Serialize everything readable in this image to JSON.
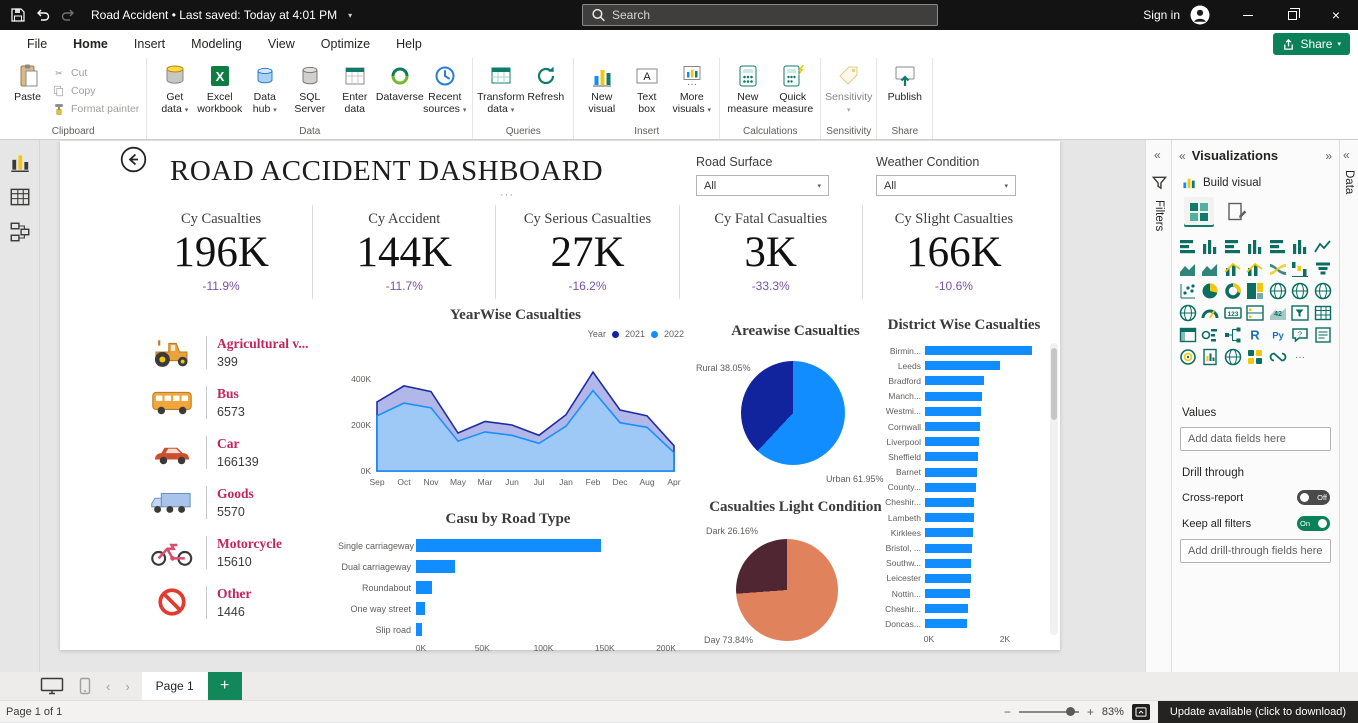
{
  "colors": {
    "titlebar_bg": "#131313",
    "accent_green": "#0b815a",
    "page_add_green": "#11875a",
    "ribbon_teal": "#0f7b6c",
    "bar_blue": "#118DFF",
    "pie_urban_blue": "#118DFF",
    "pie_rural_navy": "#12239E",
    "pie_day_salmon": "#e0835c",
    "pie_dark_maroon": "#4f2631",
    "area_2021_line": "#12239E",
    "area_2021_fill": "#aeb4e8",
    "area_2022_line": "#118DFF",
    "area_2022_fill": "#9dc9f7",
    "kpi_delta_purple": "#7851a9",
    "vehicle_label_crimson": "#c2245c"
  },
  "titlebar": {
    "icons": [
      "save-icon",
      "undo-icon",
      "redo-icon",
      "search-icon",
      "avatar-icon",
      "minimize-icon",
      "restore-icon",
      "close-icon"
    ],
    "document_title": "Road Accident • Last saved: Today at 4:01 PM",
    "search_placeholder": "Search",
    "sign_in_label": "Sign in"
  },
  "menubar": {
    "items": [
      "File",
      "Home",
      "Insert",
      "Modeling",
      "View",
      "Optimize",
      "Help"
    ],
    "active_item": "Home",
    "share_label": "Share"
  },
  "ribbon": {
    "groups": [
      {
        "label": "Clipboard",
        "buttons": [
          {
            "lines": [
              "Paste"
            ],
            "icon": "paste-icon",
            "big": true
          },
          {
            "lines": [
              "Cut"
            ],
            "icon": "cut-icon"
          },
          {
            "lines": [
              "Copy"
            ],
            "icon": "copy-icon"
          },
          {
            "lines": [
              "Format painter"
            ],
            "icon": "format-painter-icon"
          }
        ]
      },
      {
        "label": "Data",
        "buttons": [
          {
            "lines": [
              "Get",
              "data"
            ],
            "icon": "get-data-icon",
            "chevron": true
          },
          {
            "lines": [
              "Excel",
              "workbook"
            ],
            "icon": "excel-workbook-icon"
          },
          {
            "lines": [
              "Data",
              "hub"
            ],
            "icon": "data-hub-icon",
            "chevron": true
          },
          {
            "lines": [
              "SQL",
              "Server"
            ],
            "icon": "sql-server-icon"
          },
          {
            "lines": [
              "Enter",
              "data"
            ],
            "icon": "enter-data-icon"
          },
          {
            "lines": [
              "Dataverse"
            ],
            "icon": "dataverse-icon"
          },
          {
            "lines": [
              "Recent",
              "sources"
            ],
            "icon": "recent-sources-icon",
            "chevron": true
          }
        ]
      },
      {
        "label": "Queries",
        "buttons": [
          {
            "lines": [
              "Transform",
              "data"
            ],
            "icon": "transform-data-icon",
            "chevron": true
          },
          {
            "lines": [
              "Refresh"
            ],
            "icon": "refresh-icon"
          }
        ]
      },
      {
        "label": "Insert",
        "buttons": [
          {
            "lines": [
              "New",
              "visual"
            ],
            "icon": "new-visual-icon"
          },
          {
            "lines": [
              "Text",
              "box"
            ],
            "icon": "text-box-icon"
          },
          {
            "lines": [
              "More",
              "visuals"
            ],
            "icon": "more-visuals-icon",
            "chevron": true
          }
        ]
      },
      {
        "label": "Calculations",
        "buttons": [
          {
            "lines": [
              "New",
              "measure"
            ],
            "icon": "new-measure-icon"
          },
          {
            "lines": [
              "Quick",
              "measure"
            ],
            "icon": "quick-measure-icon"
          }
        ]
      },
      {
        "label": "Sensitivity",
        "buttons": [
          {
            "lines": [
              "Sensitivity"
            ],
            "icon": "sensitivity-icon",
            "chevron": true,
            "disabled": true
          }
        ]
      },
      {
        "label": "Share",
        "buttons": [
          {
            "lines": [
              "Publish"
            ],
            "icon": "publish-icon"
          }
        ]
      }
    ]
  },
  "left_rail": {
    "items": [
      {
        "icon": "report-view-icon"
      },
      {
        "icon": "table-view-icon"
      },
      {
        "icon": "model-view-icon"
      }
    ]
  },
  "dashboard": {
    "title": "ROAD ACCIDENT DASHBOARD",
    "slicers": [
      {
        "label": "Road Surface",
        "value": "All"
      },
      {
        "label": "Weather Condition",
        "value": "All"
      }
    ],
    "kpis": [
      {
        "label": "Cy Casualties",
        "value": "196K",
        "delta": "-11.9%"
      },
      {
        "label": "Cy Accident",
        "value": "144K",
        "delta": "-11.7%"
      },
      {
        "label": "Cy Serious Casualties",
        "value": "27K",
        "delta": "-16.2%"
      },
      {
        "label": "Cy Fatal Casualties",
        "value": "3K",
        "delta": "-33.3%"
      },
      {
        "label": "Cy Slight Casualties",
        "value": "166K",
        "delta": "-10.6%"
      }
    ],
    "vehicles": [
      {
        "icon": "tractor-icon",
        "label": "Agricultural v...",
        "value": "399"
      },
      {
        "icon": "bus-icon",
        "label": "Bus",
        "value": "6573"
      },
      {
        "icon": "car-icon",
        "label": "Car",
        "value": "166139"
      },
      {
        "icon": "truck-icon",
        "label": "Goods",
        "value": "5570"
      },
      {
        "icon": "motorcycle-icon",
        "label": "Motorcycle",
        "value": "15610"
      },
      {
        "icon": "no-entry-icon",
        "label": "Other",
        "value": "1446"
      }
    ]
  },
  "chart_data": [
    {
      "type": "area",
      "title": "YearWise Casualties",
      "legend_title": "Year",
      "legend_position": "top-right",
      "x": [
        "Sep",
        "Oct",
        "Nov",
        "May",
        "Mar",
        "Jun",
        "Jul",
        "Jan",
        "Feb",
        "Dec",
        "Aug",
        "Apr"
      ],
      "series": [
        {
          "name": "2021",
          "color": "#12239E",
          "values_k": [
            300,
            370,
            345,
            165,
            215,
            200,
            155,
            245,
            430,
            265,
            240,
            110
          ]
        },
        {
          "name": "2022",
          "color": "#118DFF",
          "values_k": [
            240,
            295,
            275,
            130,
            170,
            155,
            120,
            195,
            350,
            210,
            190,
            80
          ]
        }
      ],
      "yticks": [
        "0K",
        "200K",
        "400K"
      ],
      "ylim_k": [
        0,
        500
      ]
    },
    {
      "type": "pie",
      "title": "Areawise Casualties",
      "slices": [
        {
          "label": "Urban",
          "pct": 61.95,
          "color": "#118DFF"
        },
        {
          "label": "Rural",
          "pct": 38.05,
          "color": "#12239E"
        }
      ],
      "data_labels": [
        "Rural 38.05%",
        "Urban 61.95%"
      ]
    },
    {
      "type": "bar",
      "orientation": "horizontal",
      "title": "District Wise Casualties",
      "categories": [
        "Birmin...",
        "Leeds",
        "Bradford",
        "Manch...",
        "Westmi...",
        "Cornwall",
        "Liverpool",
        "Sheffield",
        "Barnet",
        "County...",
        "Cheshir...",
        "Lambeth",
        "Kirklees",
        "Bristol, ...",
        "Southw...",
        "Leicester",
        "Nottin...",
        "Cheshir...",
        "Doncas..."
      ],
      "values_k": [
        2.82,
        1.98,
        1.55,
        1.5,
        1.47,
        1.45,
        1.42,
        1.4,
        1.37,
        1.33,
        1.3,
        1.28,
        1.26,
        1.24,
        1.22,
        1.2,
        1.17,
        1.14,
        1.1
      ],
      "xticks": [
        "0K",
        "2K"
      ],
      "xlim_k": [
        0,
        2.9
      ],
      "bar_color": "#118DFF",
      "scrollbar": true
    },
    {
      "type": "bar",
      "orientation": "horizontal",
      "title": "Casu by Road Type",
      "categories": [
        "Single carriageway",
        "Dual carriageway",
        "Roundabout",
        "One way street",
        "Slip road"
      ],
      "values": [
        151000,
        32000,
        13000,
        7000,
        5000
      ],
      "xticks": [
        "0K",
        "50K",
        "100K",
        "150K",
        "200K"
      ],
      "xlim": [
        0,
        200000
      ],
      "bar_color": "#118DFF"
    },
    {
      "type": "pie",
      "title": "Casualties Light Condition",
      "slices": [
        {
          "label": "Day",
          "pct": 73.84,
          "color": "#e0835c"
        },
        {
          "label": "Dark",
          "pct": 26.16,
          "color": "#4f2631"
        }
      ],
      "data_labels": [
        "Dark 26.16%",
        "Day 73.84%"
      ]
    }
  ],
  "filters_pane": {
    "label": "Filters",
    "icon": "funnel-icon"
  },
  "viz_panel": {
    "title": "Visualizations",
    "build_visual_label": "Build visual",
    "values_label": "Values",
    "values_placeholder": "Add data fields here",
    "drill_through_label": "Drill through",
    "cross_report_label": "Cross-report",
    "cross_report_state": "Off",
    "keep_all_filters_label": "Keep all filters",
    "keep_all_filters_state": "On",
    "drill_placeholder": "Add drill-through fields here",
    "visual_icons": [
      {
        "name": "stacked-bar-chart-icon",
        "kind": "bars-h"
      },
      {
        "name": "stacked-column-chart-icon",
        "kind": "bars-v"
      },
      {
        "name": "clustered-bar-chart-icon",
        "kind": "bars-h"
      },
      {
        "name": "clustered-column-chart-icon",
        "kind": "bars-v"
      },
      {
        "name": "100-stacked-bar-chart-icon",
        "kind": "bars-h"
      },
      {
        "name": "100-stacked-column-chart-icon",
        "kind": "bars-v"
      },
      {
        "name": "line-chart-icon",
        "kind": "line"
      },
      {
        "name": "area-chart-icon",
        "kind": "area"
      },
      {
        "name": "stacked-area-chart-icon",
        "kind": "area"
      },
      {
        "name": "line-and-stacked-column-chart-icon",
        "kind": "combo"
      },
      {
        "name": "line-and-clustered-column-chart-icon",
        "kind": "combo"
      },
      {
        "name": "ribbon-chart-icon",
        "kind": "ribbon"
      },
      {
        "name": "waterfall-chart-icon",
        "kind": "waterfall"
      },
      {
        "name": "funnel-chart-icon",
        "kind": "funnel"
      },
      {
        "name": "scatter-chart-icon",
        "kind": "scatter"
      },
      {
        "name": "pie-chart-icon",
        "kind": "pie"
      },
      {
        "name": "donut-chart-icon",
        "kind": "donut"
      },
      {
        "name": "treemap-icon",
        "kind": "treemap"
      },
      {
        "name": "map-icon",
        "kind": "map"
      },
      {
        "name": "filled-map-icon",
        "kind": "map"
      },
      {
        "name": "shape-map-icon",
        "kind": "map"
      },
      {
        "name": "azure-map-icon",
        "kind": "map"
      },
      {
        "name": "gauge-icon",
        "kind": "gauge"
      },
      {
        "name": "card-icon",
        "kind": "card"
      },
      {
        "name": "multi-row-card-icon",
        "kind": "mcard"
      },
      {
        "name": "kpi-icon",
        "kind": "kpi"
      },
      {
        "name": "slicer-icon",
        "kind": "slicer"
      },
      {
        "name": "table-icon",
        "kind": "table"
      },
      {
        "name": "matrix-icon",
        "kind": "matrix"
      },
      {
        "name": "key-influencers-icon",
        "kind": "key"
      },
      {
        "name": "decomposition-tree-icon",
        "kind": "tree"
      },
      {
        "name": "r-script-visual-icon",
        "kind": "R"
      },
      {
        "name": "python-visual-icon",
        "kind": "Py"
      },
      {
        "name": "qa-visual-icon",
        "kind": "qa"
      },
      {
        "name": "smart-narrative-icon",
        "kind": "narrative"
      },
      {
        "name": "metrics-icon",
        "kind": "goal"
      },
      {
        "name": "paginated-report-icon",
        "kind": "report"
      },
      {
        "name": "arcgis-map-icon",
        "kind": "map"
      },
      {
        "name": "power-apps-icon",
        "kind": "apps"
      },
      {
        "name": "power-automate-icon",
        "kind": "automate"
      },
      {
        "name": "more-visuals-ellipsis-icon",
        "kind": "dots"
      }
    ]
  },
  "data_pane": {
    "label": "Data"
  },
  "pagebar": {
    "icons": [
      "desktop-view-icon",
      "mobile-view-icon",
      "page-prev-icon",
      "page-next-icon",
      "add-page-icon"
    ],
    "active_page": "Page 1"
  },
  "statusbar": {
    "page_indicator": "Page 1 of 1",
    "zoom": "83%",
    "update_message": "Update available (click to download)"
  }
}
